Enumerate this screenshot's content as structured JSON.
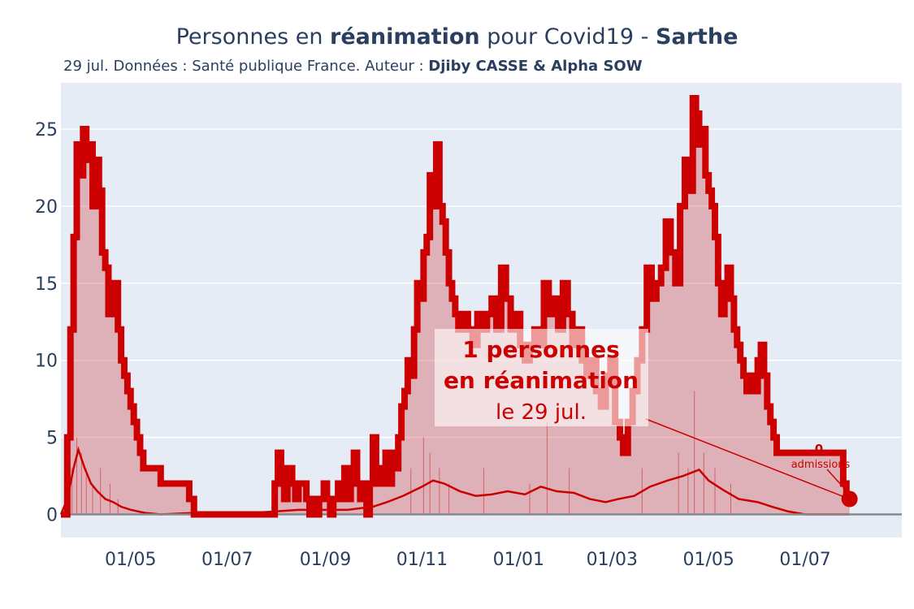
{
  "title": {
    "prefix": "Personnes en ",
    "bold1": "réanimation",
    "middle": " pour Covid19 - ",
    "bold2": "Sarthe"
  },
  "subtitle": {
    "prefix": "29 jul. Données : Santé publique France. Auteur : ",
    "author": "Djiby CASSE & Alpha SOW"
  },
  "colors": {
    "plot_bg": "#e5ecf6",
    "grid": "#ffffff",
    "line": "#cc0000",
    "fill": "rgba(204,0,0,0.25)",
    "text": "#2a3f5f",
    "zero_line": "#888888"
  },
  "chart_data": {
    "type": "area",
    "xlabel": "",
    "ylabel": "",
    "x_range": [
      "2020-03-18",
      "2021-08-31"
    ],
    "ylim": [
      -1.5,
      28
    ],
    "y_ticks": [
      0,
      5,
      10,
      15,
      20,
      25
    ],
    "x_tick_labels": [
      {
        "date": "2020-05-01",
        "label": "01/05"
      },
      {
        "date": "2020-07-01",
        "label": "01/07"
      },
      {
        "date": "2020-09-01",
        "label": "01/09"
      },
      {
        "date": "2020-11-01",
        "label": "01/11"
      },
      {
        "date": "2021-01-01",
        "label": "01/01"
      },
      {
        "date": "2021-03-01",
        "label": "01/03"
      },
      {
        "date": "2021-05-01",
        "label": "01/05"
      },
      {
        "date": "2021-07-01",
        "label": "01/07"
      }
    ],
    "series": [
      {
        "role": "reanimation",
        "points": [
          [
            "2020-03-18",
            0
          ],
          [
            "2020-03-20",
            0
          ],
          [
            "2020-03-22",
            5
          ],
          [
            "2020-03-24",
            12
          ],
          [
            "2020-03-26",
            18
          ],
          [
            "2020-03-28",
            24
          ],
          [
            "2020-03-30",
            22
          ],
          [
            "2020-04-01",
            25
          ],
          [
            "2020-04-03",
            23
          ],
          [
            "2020-04-05",
            24
          ],
          [
            "2020-04-07",
            20
          ],
          [
            "2020-04-09",
            23
          ],
          [
            "2020-04-11",
            21
          ],
          [
            "2020-04-13",
            17
          ],
          [
            "2020-04-15",
            16
          ],
          [
            "2020-04-17",
            13
          ],
          [
            "2020-04-19",
            14
          ],
          [
            "2020-04-21",
            15
          ],
          [
            "2020-04-23",
            12
          ],
          [
            "2020-04-25",
            10
          ],
          [
            "2020-04-27",
            9
          ],
          [
            "2020-04-29",
            8
          ],
          [
            "2020-05-01",
            7
          ],
          [
            "2020-05-03",
            6
          ],
          [
            "2020-05-05",
            5
          ],
          [
            "2020-05-07",
            4
          ],
          [
            "2020-05-09",
            3
          ],
          [
            "2020-05-13",
            3
          ],
          [
            "2020-05-17",
            3
          ],
          [
            "2020-05-20",
            2
          ],
          [
            "2020-05-25",
            2
          ],
          [
            "2020-06-01",
            2
          ],
          [
            "2020-06-05",
            2
          ],
          [
            "2020-06-07",
            1
          ],
          [
            "2020-06-10",
            0
          ],
          [
            "2020-06-20",
            0
          ],
          [
            "2020-07-01",
            0
          ],
          [
            "2020-07-15",
            0
          ],
          [
            "2020-07-28",
            0
          ],
          [
            "2020-07-31",
            2
          ],
          [
            "2020-08-02",
            4
          ],
          [
            "2020-08-04",
            3
          ],
          [
            "2020-08-06",
            1
          ],
          [
            "2020-08-08",
            3
          ],
          [
            "2020-08-11",
            2
          ],
          [
            "2020-08-13",
            1
          ],
          [
            "2020-08-15",
            2
          ],
          [
            "2020-08-18",
            2
          ],
          [
            "2020-08-20",
            1
          ],
          [
            "2020-08-22",
            0
          ],
          [
            "2020-08-24",
            1
          ],
          [
            "2020-08-26",
            0
          ],
          [
            "2020-08-28",
            1
          ],
          [
            "2020-08-31",
            2
          ],
          [
            "2020-09-02",
            1
          ],
          [
            "2020-09-04",
            0
          ],
          [
            "2020-09-06",
            1
          ],
          [
            "2020-09-09",
            2
          ],
          [
            "2020-09-11",
            1
          ],
          [
            "2020-09-13",
            3
          ],
          [
            "2020-09-15",
            1
          ],
          [
            "2020-09-17",
            2
          ],
          [
            "2020-09-19",
            4
          ],
          [
            "2020-09-21",
            2
          ],
          [
            "2020-09-23",
            1
          ],
          [
            "2020-09-25",
            2
          ],
          [
            "2020-09-27",
            0
          ],
          [
            "2020-09-29",
            2
          ],
          [
            "2020-10-01",
            5
          ],
          [
            "2020-10-03",
            3
          ],
          [
            "2020-10-05",
            2
          ],
          [
            "2020-10-07",
            3
          ],
          [
            "2020-10-09",
            4
          ],
          [
            "2020-10-11",
            2
          ],
          [
            "2020-10-13",
            4
          ],
          [
            "2020-10-15",
            3
          ],
          [
            "2020-10-17",
            5
          ],
          [
            "2020-10-19",
            7
          ],
          [
            "2020-10-21",
            8
          ],
          [
            "2020-10-23",
            10
          ],
          [
            "2020-10-25",
            9
          ],
          [
            "2020-10-27",
            12
          ],
          [
            "2020-10-29",
            15
          ],
          [
            "2020-10-31",
            14
          ],
          [
            "2020-11-02",
            17
          ],
          [
            "2020-11-04",
            18
          ],
          [
            "2020-11-06",
            22
          ],
          [
            "2020-11-08",
            20
          ],
          [
            "2020-11-10",
            24
          ],
          [
            "2020-11-12",
            20
          ],
          [
            "2020-11-14",
            19
          ],
          [
            "2020-11-16",
            17
          ],
          [
            "2020-11-18",
            15
          ],
          [
            "2020-11-20",
            14
          ],
          [
            "2020-11-22",
            13
          ],
          [
            "2020-11-24",
            12
          ],
          [
            "2020-11-26",
            13
          ],
          [
            "2020-11-30",
            12
          ],
          [
            "2020-12-03",
            11
          ],
          [
            "2020-12-06",
            13
          ],
          [
            "2020-12-09",
            12
          ],
          [
            "2020-12-12",
            13
          ],
          [
            "2020-12-15",
            14
          ],
          [
            "2020-12-18",
            12
          ],
          [
            "2020-12-21",
            16
          ],
          [
            "2020-12-24",
            14
          ],
          [
            "2020-12-27",
            12
          ],
          [
            "2020-12-30",
            13
          ],
          [
            "2021-01-02",
            11
          ],
          [
            "2021-01-05",
            10
          ],
          [
            "2021-01-08",
            11
          ],
          [
            "2021-01-11",
            12
          ],
          [
            "2021-01-14",
            11
          ],
          [
            "2021-01-17",
            15
          ],
          [
            "2021-01-20",
            13
          ],
          [
            "2021-01-23",
            14
          ],
          [
            "2021-01-26",
            12
          ],
          [
            "2021-01-29",
            15
          ],
          [
            "2021-02-01",
            13
          ],
          [
            "2021-02-04",
            11
          ],
          [
            "2021-02-07",
            12
          ],
          [
            "2021-02-10",
            10
          ],
          [
            "2021-02-13",
            9
          ],
          [
            "2021-02-16",
            10
          ],
          [
            "2021-02-19",
            8
          ],
          [
            "2021-02-22",
            7
          ],
          [
            "2021-02-25",
            9
          ],
          [
            "2021-02-28",
            10
          ],
          [
            "2021-03-03",
            6
          ],
          [
            "2021-03-06",
            5
          ],
          [
            "2021-03-08",
            4
          ],
          [
            "2021-03-11",
            6
          ],
          [
            "2021-03-14",
            8
          ],
          [
            "2021-03-17",
            10
          ],
          [
            "2021-03-20",
            12
          ],
          [
            "2021-03-23",
            16
          ],
          [
            "2021-03-26",
            14
          ],
          [
            "2021-03-29",
            15
          ],
          [
            "2021-04-01",
            16
          ],
          [
            "2021-04-04",
            19
          ],
          [
            "2021-04-07",
            17
          ],
          [
            "2021-04-10",
            15
          ],
          [
            "2021-04-13",
            20
          ],
          [
            "2021-04-16",
            23
          ],
          [
            "2021-04-19",
            21
          ],
          [
            "2021-04-21",
            27
          ],
          [
            "2021-04-23",
            26
          ],
          [
            "2021-04-25",
            24
          ],
          [
            "2021-04-27",
            25
          ],
          [
            "2021-04-29",
            22
          ],
          [
            "2021-05-01",
            21
          ],
          [
            "2021-05-03",
            20
          ],
          [
            "2021-05-05",
            18
          ],
          [
            "2021-05-07",
            15
          ],
          [
            "2021-05-09",
            13
          ],
          [
            "2021-05-11",
            14
          ],
          [
            "2021-05-13",
            16
          ],
          [
            "2021-05-15",
            14
          ],
          [
            "2021-05-17",
            12
          ],
          [
            "2021-05-19",
            11
          ],
          [
            "2021-05-21",
            10
          ],
          [
            "2021-05-23",
            9
          ],
          [
            "2021-05-25",
            8
          ],
          [
            "2021-05-27",
            9
          ],
          [
            "2021-05-29",
            8
          ],
          [
            "2021-06-01",
            10
          ],
          [
            "2021-06-03",
            11
          ],
          [
            "2021-06-05",
            9
          ],
          [
            "2021-06-07",
            7
          ],
          [
            "2021-06-09",
            6
          ],
          [
            "2021-06-11",
            5
          ],
          [
            "2021-06-13",
            4
          ],
          [
            "2021-06-16",
            4
          ],
          [
            "2021-06-20",
            4
          ],
          [
            "2021-06-25",
            4
          ],
          [
            "2021-07-01",
            4
          ],
          [
            "2021-07-08",
            4
          ],
          [
            "2021-07-15",
            4
          ],
          [
            "2021-07-22",
            4
          ],
          [
            "2021-07-25",
            2
          ],
          [
            "2021-07-27",
            1
          ],
          [
            "2021-07-29",
            1
          ]
        ]
      },
      {
        "role": "admissions_moyenne",
        "points": [
          [
            "2020-03-18",
            0
          ],
          [
            "2020-03-22",
            1
          ],
          [
            "2020-03-26",
            3
          ],
          [
            "2020-03-29",
            4.2
          ],
          [
            "2020-04-02",
            3
          ],
          [
            "2020-04-06",
            2
          ],
          [
            "2020-04-10",
            1.5
          ],
          [
            "2020-04-15",
            1
          ],
          [
            "2020-04-20",
            0.8
          ],
          [
            "2020-04-25",
            0.5
          ],
          [
            "2020-05-01",
            0.3
          ],
          [
            "2020-05-10",
            0.1
          ],
          [
            "2020-05-20",
            0
          ],
          [
            "2020-06-10",
            0.1
          ],
          [
            "2020-07-01",
            0
          ],
          [
            "2020-08-01",
            0.2
          ],
          [
            "2020-08-15",
            0.3
          ],
          [
            "2020-09-01",
            0.3
          ],
          [
            "2020-09-15",
            0.3
          ],
          [
            "2020-10-01",
            0.5
          ],
          [
            "2020-10-10",
            0.8
          ],
          [
            "2020-10-20",
            1.2
          ],
          [
            "2020-11-01",
            1.8
          ],
          [
            "2020-11-08",
            2.2
          ],
          [
            "2020-11-15",
            2
          ],
          [
            "2020-11-25",
            1.5
          ],
          [
            "2020-12-05",
            1.2
          ],
          [
            "2020-12-15",
            1.3
          ],
          [
            "2020-12-25",
            1.5
          ],
          [
            "2021-01-05",
            1.3
          ],
          [
            "2021-01-15",
            1.8
          ],
          [
            "2021-01-25",
            1.5
          ],
          [
            "2021-02-05",
            1.4
          ],
          [
            "2021-02-15",
            1
          ],
          [
            "2021-02-25",
            0.8
          ],
          [
            "2021-03-05",
            1
          ],
          [
            "2021-03-15",
            1.2
          ],
          [
            "2021-03-25",
            1.8
          ],
          [
            "2021-04-05",
            2.2
          ],
          [
            "2021-04-15",
            2.5
          ],
          [
            "2021-04-25",
            2.9
          ],
          [
            "2021-05-01",
            2.2
          ],
          [
            "2021-05-10",
            1.6
          ],
          [
            "2021-05-20",
            1
          ],
          [
            "2021-06-01",
            0.8
          ],
          [
            "2021-06-10",
            0.5
          ],
          [
            "2021-06-20",
            0.2
          ],
          [
            "2021-07-01",
            0
          ],
          [
            "2021-07-29",
            0
          ]
        ]
      },
      {
        "role": "admissions_quotidiennes",
        "points": [
          [
            "2020-03-25",
            3
          ],
          [
            "2020-03-28",
            5
          ],
          [
            "2020-03-31",
            4
          ],
          [
            "2020-04-03",
            3
          ],
          [
            "2020-04-07",
            2
          ],
          [
            "2020-04-12",
            3
          ],
          [
            "2020-04-18",
            2
          ],
          [
            "2020-04-23",
            1
          ],
          [
            "2020-10-25",
            3
          ],
          [
            "2020-11-02",
            5
          ],
          [
            "2020-11-06",
            4
          ],
          [
            "2020-11-12",
            3
          ],
          [
            "2020-11-18",
            2
          ],
          [
            "2020-12-10",
            3
          ],
          [
            "2021-01-08",
            2
          ],
          [
            "2021-01-19",
            6
          ],
          [
            "2021-02-02",
            3
          ],
          [
            "2021-03-20",
            3
          ],
          [
            "2021-04-12",
            4
          ],
          [
            "2021-04-18",
            3
          ],
          [
            "2021-04-22",
            8
          ],
          [
            "2021-04-28",
            4
          ],
          [
            "2021-05-05",
            3
          ],
          [
            "2021-05-15",
            2
          ]
        ]
      }
    ],
    "annotation_main": {
      "line1": "1 personnes",
      "line2": "en réanimation",
      "line3": "le 29 jul.",
      "target_date": "2021-07-29",
      "target_value": 1
    },
    "annotation_admissions": {
      "value": "0",
      "label": "admissions"
    }
  }
}
